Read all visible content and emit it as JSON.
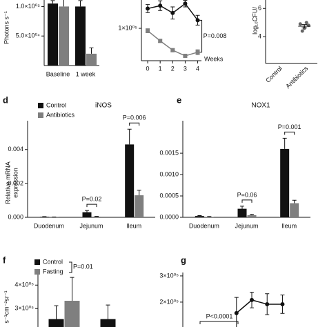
{
  "chart_data": [
    {
      "type": "bar",
      "ylabel": "Photons s⁻¹",
      "categories": [
        "Baseline",
        "1 week"
      ],
      "series": [
        {
          "color": "#111111",
          "values": [
            105000,
            100000
          ],
          "errors": [
            5000,
            10000
          ]
        },
        {
          "color": "#7f7f7f",
          "values": [
            100000,
            20000
          ],
          "errors": [
            15000,
            10000
          ]
        }
      ],
      "ylim": [
        0,
        111000
      ],
      "yticks": [
        {
          "value": 50000,
          "label": "5.0×10⁰⁴"
        },
        {
          "value": 100000,
          "label": "1.0×10⁰⁵"
        }
      ]
    },
    {
      "type": "line",
      "xlabel": "Weeks",
      "x": [
        0,
        1,
        2,
        3,
        4
      ],
      "xlim": [
        -0.5,
        4.3
      ],
      "xticks": [
        0,
        1,
        2,
        3,
        4
      ],
      "series": [
        {
          "color": "#111111",
          "marker": "circle",
          "values": [
            148800,
            156000,
            138000,
            161000,
            120000
          ],
          "errors": [
            10000,
            12000,
            15000,
            8000,
            12000
          ]
        },
        {
          "color": "#7f7f7f",
          "marker": "square",
          "values": [
            94000,
            69000,
            46000,
            32000,
            41000
          ],
          "errors": [
            5000,
            4000,
            4000,
            3000,
            6000
          ]
        }
      ],
      "ylim": [
        20000,
        170000
      ],
      "yticks": [
        {
          "value": 100000,
          "label": "1×10⁰⁵"
        }
      ],
      "annotations": [
        "P=0.008"
      ]
    },
    {
      "type": "scatter",
      "ylabel": "log₁₀CFU/",
      "groups": [
        {
          "category": "Control",
          "values": []
        },
        {
          "category": "Antibiotics",
          "values": [
            4.9,
            4.6,
            4.8,
            4.4,
            5.0
          ],
          "mean": 4.74,
          "sem": 0.12
        }
      ],
      "color": "#666666",
      "ylim": [
        2.1,
        6.6
      ],
      "yticks": [
        4,
        6
      ]
    },
    {
      "type": "bar",
      "panel": "d",
      "title": "iNOS",
      "ylabel": [
        "Relative mRNA",
        "expression"
      ],
      "categories": [
        "Duodenum",
        "Jejunum",
        "Ileum"
      ],
      "series": [
        {
          "name": "Control",
          "color": "#111111",
          "values": [
            3e-05,
            0.0003,
            0.0043
          ],
          "errors": [
            1e-05,
            0.0001,
            0.0009
          ]
        },
        {
          "name": "Antibiotics",
          "color": "#7f7f7f",
          "values": [
            1e-05,
            4e-05,
            0.0013
          ],
          "errors": [
            1e-05,
            2e-05,
            0.0003
          ]
        }
      ],
      "legend": "top-left",
      "ylim": [
        0,
        0.0057
      ],
      "yticks": [
        {
          "value": 0,
          "label": "0.000"
        },
        {
          "value": 0.002,
          "label": "0.002"
        },
        {
          "value": 0.004,
          "label": "0.004"
        }
      ],
      "annotations": [
        "P=0.02",
        "P=0.006"
      ]
    },
    {
      "type": "bar",
      "panel": "e",
      "title": "NOX1",
      "categories": [
        "Duodenum",
        "Jejunum",
        "Ileum"
      ],
      "series": [
        {
          "color": "#111111",
          "values": [
            3e-05,
            0.0002,
            0.0016
          ],
          "errors": [
            1e-05,
            6e-05,
            0.00025
          ]
        },
        {
          "color": "#7f7f7f",
          "values": [
            1e-05,
            5e-05,
            0.00033
          ],
          "errors": [
            1e-05,
            2e-05,
            7e-05
          ]
        }
      ],
      "ylim": [
        0,
        0.00226
      ],
      "yticks": [
        {
          "value": 0,
          "label": "0.0000"
        },
        {
          "value": 0.0005,
          "label": "0.0005"
        },
        {
          "value": 0.001,
          "label": "0.0010"
        },
        {
          "value": 0.0015,
          "label": "0.0015"
        }
      ],
      "annotations": [
        "P=0.06",
        "P=0.001"
      ]
    },
    {
      "type": "bar",
      "panel": "f",
      "ylabel": "s⁻¹cm⁻²sr⁻¹",
      "categories": [
        null,
        null
      ],
      "series": [
        {
          "name": "Control",
          "color": "#111111",
          "values": [
            255000,
            255000
          ],
          "errors": [
            57000,
            60000
          ]
        },
        {
          "name": "Fasting",
          "color": "#7f7f7f",
          "values": [
            333000,
            null
          ],
          "errors": [
            100000,
            null
          ]
        }
      ],
      "legend": "top-left",
      "ylim": [
        221000,
        445000
      ],
      "yticks": [
        {
          "value": 300000,
          "label": "3×10⁰⁵"
        },
        {
          "value": 400000,
          "label": "4×10⁰⁵"
        }
      ],
      "annotations": [
        "P=0.01"
      ]
    },
    {
      "type": "line",
      "panel": "g",
      "categories": [
        null,
        null,
        null,
        null,
        null,
        null,
        null,
        null,
        null
      ],
      "series": [
        {
          "color": "#111111",
          "marker": "circle",
          "values": [
            null,
            null,
            null,
            158000,
            208000,
            192000,
            192000,
            null,
            null
          ],
          "errors": [
            null,
            null,
            null,
            60000,
            30000,
            40000,
            35000,
            null,
            null
          ]
        }
      ],
      "ylim": [
        105000,
        313000
      ],
      "yticks": [
        {
          "value": 200000,
          "label": "2×10⁰⁵"
        },
        {
          "value": 300000,
          "label": "3×10⁰⁵"
        }
      ],
      "annotations": [
        "P<0.0001"
      ]
    }
  ]
}
